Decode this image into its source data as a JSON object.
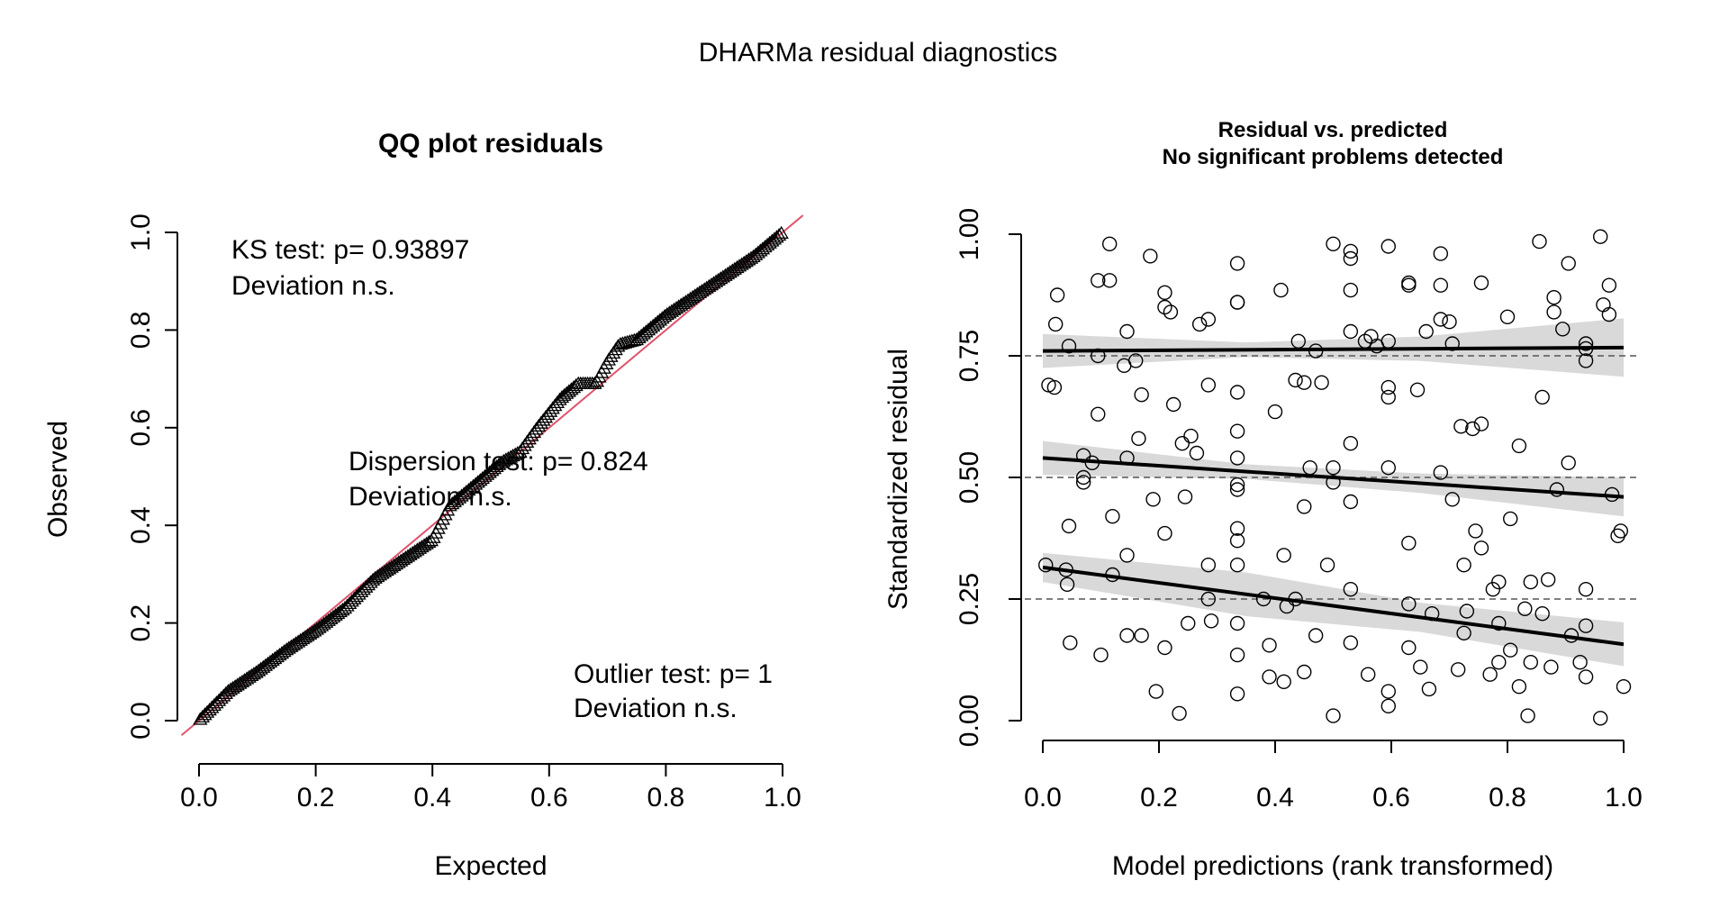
{
  "figure": {
    "title": "DHARMa residual diagnostics"
  },
  "chart_data": [
    {
      "type": "scatter",
      "title": "QQ plot residuals",
      "xlabel": "Expected",
      "ylabel": "Observed",
      "xlim": [
        0,
        1
      ],
      "ylim": [
        0,
        1
      ],
      "x_ticks": [
        "0.0",
        "0.2",
        "0.4",
        "0.6",
        "0.8",
        "1.0"
      ],
      "y_ticks": [
        "0.0",
        "0.2",
        "0.4",
        "0.6",
        "0.8",
        "1.0"
      ],
      "marker": "open-triangle",
      "reference_line": {
        "slope": 1,
        "intercept": 0,
        "color": "#df536b"
      },
      "annotations": {
        "ks": [
          "KS test: p= 0.93897",
          "Deviation  n.s."
        ],
        "dispersion": [
          "Dispersion test: p= 0.824",
          "Deviation  n.s."
        ],
        "outlier": [
          "Outlier test: p= 1",
          "Deviation  n.s."
        ]
      },
      "qq_curve": {
        "x": [
          0.0,
          0.05,
          0.1,
          0.15,
          0.2,
          0.25,
          0.3,
          0.35,
          0.4,
          0.43,
          0.48,
          0.52,
          0.55,
          0.58,
          0.62,
          0.65,
          0.68,
          0.7,
          0.72,
          0.75,
          0.8,
          0.85,
          0.9,
          0.95,
          1.0
        ],
        "y": [
          0.0,
          0.06,
          0.1,
          0.145,
          0.185,
          0.23,
          0.29,
          0.33,
          0.37,
          0.44,
          0.49,
          0.53,
          0.55,
          0.6,
          0.66,
          0.69,
          0.69,
          0.735,
          0.77,
          0.78,
          0.83,
          0.87,
          0.91,
          0.95,
          1.0
        ]
      }
    },
    {
      "type": "scatter",
      "title": "Residual vs. predicted",
      "subtitle": "No significant problems detected",
      "xlabel": "Model predictions (rank transformed)",
      "ylabel": "Standardized residual",
      "xlim": [
        0,
        1
      ],
      "ylim": [
        0,
        1
      ],
      "x_ticks": [
        "0.0",
        "0.2",
        "0.4",
        "0.6",
        "0.8",
        "1.0"
      ],
      "y_ticks": [
        "0.00",
        "0.25",
        "0.50",
        "0.75",
        "1.00"
      ],
      "marker": "open-circle",
      "reference_lines_y": [
        0.25,
        0.5,
        0.75
      ],
      "quantile_fits": [
        {
          "q": 0.25,
          "x": [
            0,
            1
          ],
          "y": [
            0.315,
            0.157
          ]
        },
        {
          "q": 0.5,
          "x": [
            0,
            1
          ],
          "y": [
            0.54,
            0.46
          ]
        },
        {
          "q": 0.75,
          "x": [
            0,
            1
          ],
          "y": [
            0.76,
            0.767
          ]
        }
      ],
      "points": [
        [
          0.005,
          0.32
        ],
        [
          0.01,
          0.69
        ],
        [
          0.02,
          0.685
        ],
        [
          0.022,
          0.815
        ],
        [
          0.025,
          0.875
        ],
        [
          0.04,
          0.31
        ],
        [
          0.042,
          0.28
        ],
        [
          0.045,
          0.77
        ],
        [
          0.045,
          0.4
        ],
        [
          0.047,
          0.16
        ],
        [
          0.07,
          0.545
        ],
        [
          0.07,
          0.49
        ],
        [
          0.07,
          0.5
        ],
        [
          0.085,
          0.53
        ],
        [
          0.095,
          0.905
        ],
        [
          0.095,
          0.75
        ],
        [
          0.095,
          0.63
        ],
        [
          0.1,
          0.135
        ],
        [
          0.115,
          0.98
        ],
        [
          0.115,
          0.905
        ],
        [
          0.12,
          0.42
        ],
        [
          0.12,
          0.3
        ],
        [
          0.14,
          0.73
        ],
        [
          0.145,
          0.8
        ],
        [
          0.145,
          0.54
        ],
        [
          0.145,
          0.34
        ],
        [
          0.145,
          0.175
        ],
        [
          0.16,
          0.74
        ],
        [
          0.165,
          0.58
        ],
        [
          0.17,
          0.67
        ],
        [
          0.17,
          0.175
        ],
        [
          0.185,
          0.955
        ],
        [
          0.19,
          0.455
        ],
        [
          0.195,
          0.06
        ],
        [
          0.21,
          0.88
        ],
        [
          0.21,
          0.85
        ],
        [
          0.21,
          0.385
        ],
        [
          0.21,
          0.15
        ],
        [
          0.22,
          0.84
        ],
        [
          0.225,
          0.65
        ],
        [
          0.235,
          0.015
        ],
        [
          0.24,
          0.57
        ],
        [
          0.245,
          0.46
        ],
        [
          0.25,
          0.2
        ],
        [
          0.255,
          0.585
        ],
        [
          0.265,
          0.55
        ],
        [
          0.27,
          0.815
        ],
        [
          0.285,
          0.825
        ],
        [
          0.285,
          0.69
        ],
        [
          0.285,
          0.32
        ],
        [
          0.285,
          0.25
        ],
        [
          0.29,
          0.205
        ],
        [
          0.335,
          0.94
        ],
        [
          0.335,
          0.86
        ],
        [
          0.335,
          0.86
        ],
        [
          0.335,
          0.675
        ],
        [
          0.335,
          0.595
        ],
        [
          0.335,
          0.54
        ],
        [
          0.335,
          0.485
        ],
        [
          0.335,
          0.475
        ],
        [
          0.335,
          0.395
        ],
        [
          0.335,
          0.37
        ],
        [
          0.335,
          0.32
        ],
        [
          0.335,
          0.2
        ],
        [
          0.335,
          0.135
        ],
        [
          0.335,
          0.055
        ],
        [
          0.38,
          0.25
        ],
        [
          0.39,
          0.155
        ],
        [
          0.39,
          0.09
        ],
        [
          0.4,
          0.635
        ],
        [
          0.41,
          0.885
        ],
        [
          0.415,
          0.34
        ],
        [
          0.415,
          0.08
        ],
        [
          0.42,
          0.235
        ],
        [
          0.435,
          0.25
        ],
        [
          0.435,
          0.7
        ],
        [
          0.44,
          0.78
        ],
        [
          0.45,
          0.695
        ],
        [
          0.45,
          0.44
        ],
        [
          0.45,
          0.1
        ],
        [
          0.46,
          0.52
        ],
        [
          0.47,
          0.76
        ],
        [
          0.47,
          0.175
        ],
        [
          0.48,
          0.695
        ],
        [
          0.49,
          0.32
        ],
        [
          0.5,
          0.98
        ],
        [
          0.5,
          0.52
        ],
        [
          0.5,
          0.49
        ],
        [
          0.5,
          0.01
        ],
        [
          0.53,
          0.965
        ],
        [
          0.53,
          0.95
        ],
        [
          0.53,
          0.885
        ],
        [
          0.53,
          0.8
        ],
        [
          0.53,
          0.57
        ],
        [
          0.53,
          0.45
        ],
        [
          0.53,
          0.27
        ],
        [
          0.53,
          0.16
        ],
        [
          0.555,
          0.78
        ],
        [
          0.56,
          0.095
        ],
        [
          0.565,
          0.79
        ],
        [
          0.575,
          0.77
        ],
        [
          0.595,
          0.975
        ],
        [
          0.595,
          0.78
        ],
        [
          0.595,
          0.685
        ],
        [
          0.595,
          0.665
        ],
        [
          0.595,
          0.52
        ],
        [
          0.595,
          0.06
        ],
        [
          0.595,
          0.03
        ],
        [
          0.63,
          0.9
        ],
        [
          0.63,
          0.895
        ],
        [
          0.63,
          0.365
        ],
        [
          0.63,
          0.24
        ],
        [
          0.63,
          0.15
        ],
        [
          0.645,
          0.68
        ],
        [
          0.65,
          0.11
        ],
        [
          0.66,
          0.8
        ],
        [
          0.665,
          0.065
        ],
        [
          0.67,
          0.22
        ],
        [
          0.685,
          0.96
        ],
        [
          0.685,
          0.895
        ],
        [
          0.685,
          0.825
        ],
        [
          0.685,
          0.51
        ],
        [
          0.7,
          0.82
        ],
        [
          0.705,
          0.775
        ],
        [
          0.705,
          0.455
        ],
        [
          0.715,
          0.105
        ],
        [
          0.72,
          0.605
        ],
        [
          0.725,
          0.32
        ],
        [
          0.725,
          0.18
        ],
        [
          0.73,
          0.225
        ],
        [
          0.74,
          0.6
        ],
        [
          0.745,
          0.39
        ],
        [
          0.755,
          0.355
        ],
        [
          0.755,
          0.61
        ],
        [
          0.755,
          0.9
        ],
        [
          0.77,
          0.095
        ],
        [
          0.775,
          0.27
        ],
        [
          0.785,
          0.285
        ],
        [
          0.785,
          0.2
        ],
        [
          0.785,
          0.12
        ],
        [
          0.8,
          0.83
        ],
        [
          0.805,
          0.415
        ],
        [
          0.805,
          0.145
        ],
        [
          0.82,
          0.565
        ],
        [
          0.82,
          0.07
        ],
        [
          0.83,
          0.23
        ],
        [
          0.835,
          0.01
        ],
        [
          0.84,
          0.285
        ],
        [
          0.84,
          0.12
        ],
        [
          0.855,
          0.985
        ],
        [
          0.86,
          0.665
        ],
        [
          0.86,
          0.22
        ],
        [
          0.87,
          0.29
        ],
        [
          0.875,
          0.11
        ],
        [
          0.88,
          0.87
        ],
        [
          0.88,
          0.84
        ],
        [
          0.885,
          0.475
        ],
        [
          0.895,
          0.805
        ],
        [
          0.905,
          0.94
        ],
        [
          0.905,
          0.53
        ],
        [
          0.91,
          0.175
        ],
        [
          0.925,
          0.12
        ],
        [
          0.935,
          0.775
        ],
        [
          0.935,
          0.74
        ],
        [
          0.935,
          0.765
        ],
        [
          0.935,
          0.27
        ],
        [
          0.935,
          0.195
        ],
        [
          0.935,
          0.09
        ],
        [
          0.96,
          0.995
        ],
        [
          0.96,
          0.005
        ],
        [
          0.965,
          0.855
        ],
        [
          0.975,
          0.895
        ],
        [
          0.975,
          0.835
        ],
        [
          0.98,
          0.465
        ],
        [
          0.99,
          0.38
        ],
        [
          0.995,
          0.39
        ],
        [
          1.0,
          0.07
        ]
      ]
    }
  ]
}
